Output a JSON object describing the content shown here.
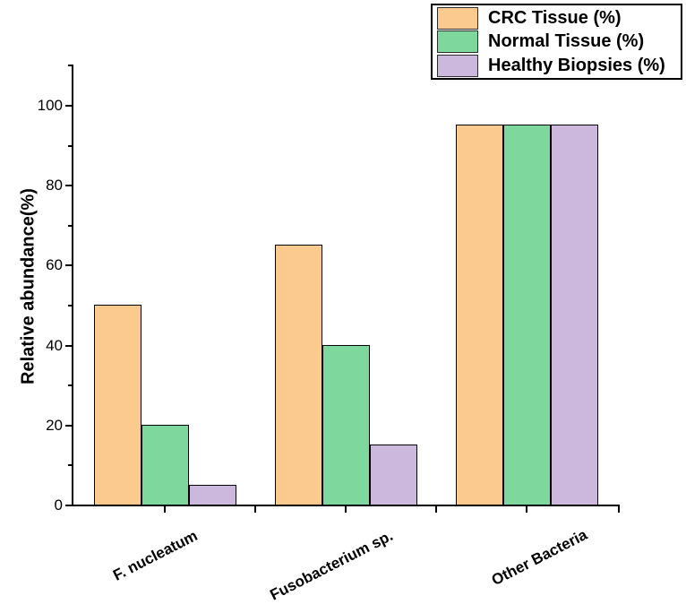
{
  "chart_data": {
    "type": "bar",
    "title": "",
    "xlabel": "",
    "ylabel": "Relative abundance(%)",
    "categories": [
      "F. nucleatum",
      "Fusobacterium sp.",
      "Other Bacteria"
    ],
    "series": [
      {
        "name": "CRC Tissue (%)",
        "color": "#FBCA8E",
        "values": [
          50,
          65,
          95
        ]
      },
      {
        "name": "Normal Tissue (%)",
        "color": "#7ED89D",
        "values": [
          20,
          40,
          95
        ]
      },
      {
        "name": "Healthy Biopsies (%)",
        "color": "#CBB8DC",
        "values": [
          5,
          15,
          95
        ]
      }
    ],
    "ylim": [
      0,
      110
    ],
    "y_major_ticks": [
      0,
      20,
      40,
      60,
      80,
      100
    ],
    "y_minor_ticks": [
      10,
      30,
      50,
      70,
      90,
      110
    ],
    "grid": false,
    "legend_position": "top-right",
    "bar_edge_color": "#000000",
    "axis_color": "#000000"
  }
}
